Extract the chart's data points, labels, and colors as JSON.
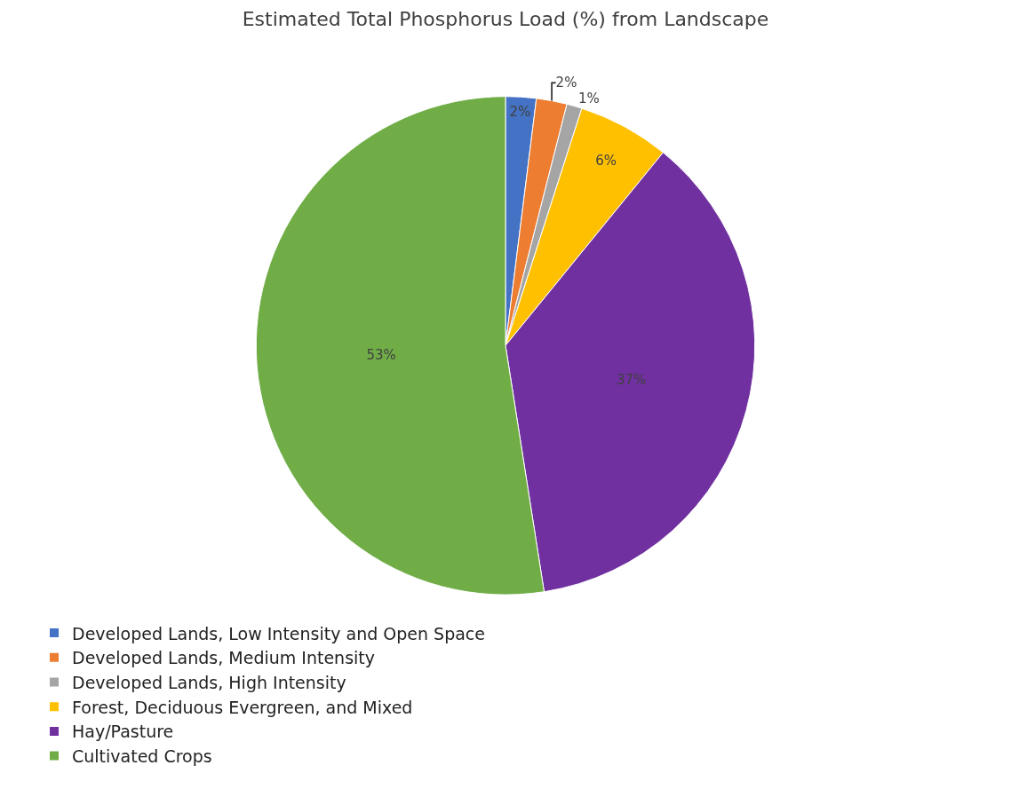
{
  "chart_data": {
    "type": "pie",
    "title": "Estimated Total Phosphorus Load (%) from Landscape",
    "categories": [
      "Developed Lands, Low Intensity and Open Space",
      "Developed Lands, Medium Intensity",
      "Developed Lands, High Intensity",
      "Forest, Deciduous Evergreen, and Mixed",
      "Hay/Pasture",
      "Cultivated Crops"
    ],
    "values": [
      2,
      2,
      1,
      6,
      37,
      53
    ],
    "value_labels": [
      "2%",
      "2%",
      "1%",
      "6%",
      "37%",
      "53%"
    ],
    "colors": [
      "#4472c4",
      "#ed7d31",
      "#a5a5a5",
      "#ffc000",
      "#7030a0",
      "#70ad47"
    ],
    "legend": "bottom"
  }
}
